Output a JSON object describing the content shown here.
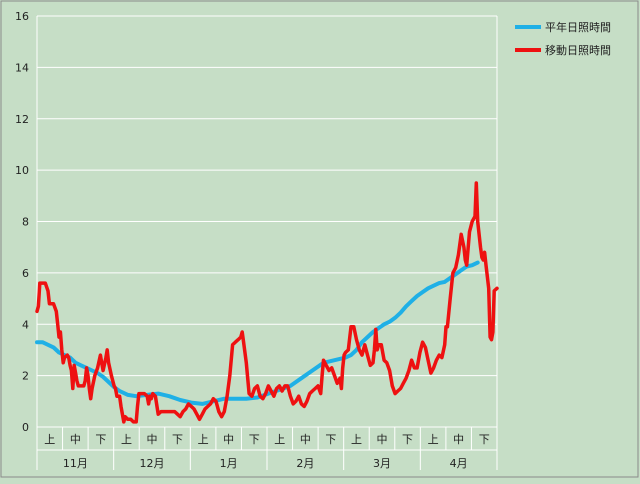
{
  "chart_data": {
    "type": "line",
    "ylim": [
      0,
      16
    ],
    "yticks": [
      0,
      2,
      4,
      6,
      8,
      10,
      12,
      14,
      16
    ],
    "months": [
      "11月",
      "12月",
      "1月",
      "2月",
      "3月",
      "4月"
    ],
    "periods": [
      "上",
      "中",
      "下"
    ],
    "legend_placement": "top-right",
    "grid": true,
    "series": [
      {
        "name": "平年日照時間",
        "color": "#1fb0e6",
        "points": [
          [
            0,
            3.3
          ],
          [
            2,
            3.3
          ],
          [
            4,
            3.2
          ],
          [
            6,
            3.1
          ],
          [
            8,
            2.9
          ],
          [
            10,
            2.8
          ],
          [
            12,
            2.7
          ],
          [
            14,
            2.5
          ],
          [
            16,
            2.4
          ],
          [
            18,
            2.3
          ],
          [
            20,
            2.2
          ],
          [
            22,
            2.1
          ],
          [
            24,
            1.95
          ],
          [
            26,
            1.75
          ],
          [
            28,
            1.55
          ],
          [
            30,
            1.4
          ],
          [
            33,
            1.25
          ],
          [
            36,
            1.2
          ],
          [
            40,
            1.25
          ],
          [
            44,
            1.3
          ],
          [
            48,
            1.2
          ],
          [
            52,
            1.05
          ],
          [
            56,
            0.95
          ],
          [
            60,
            0.9
          ],
          [
            64,
            1.0
          ],
          [
            68,
            1.1
          ],
          [
            72,
            1.1
          ],
          [
            76,
            1.1
          ],
          [
            80,
            1.15
          ],
          [
            84,
            1.3
          ],
          [
            88,
            1.45
          ],
          [
            92,
            1.6
          ],
          [
            96,
            1.9
          ],
          [
            100,
            2.2
          ],
          [
            104,
            2.5
          ],
          [
            108,
            2.6
          ],
          [
            112,
            2.7
          ],
          [
            114,
            2.8
          ],
          [
            116,
            3.0
          ],
          [
            118,
            3.3
          ],
          [
            120,
            3.5
          ],
          [
            122,
            3.7
          ],
          [
            124,
            3.85
          ],
          [
            126,
            4.0
          ],
          [
            128,
            4.1
          ],
          [
            130,
            4.25
          ],
          [
            132,
            4.45
          ],
          [
            134,
            4.7
          ],
          [
            136,
            4.9
          ],
          [
            138,
            5.1
          ],
          [
            140,
            5.25
          ],
          [
            142,
            5.4
          ],
          [
            144,
            5.5
          ],
          [
            146,
            5.6
          ],
          [
            148,
            5.65
          ],
          [
            150,
            5.8
          ],
          [
            152,
            5.95
          ],
          [
            154,
            6.1
          ],
          [
            156,
            6.25
          ],
          [
            158,
            6.3
          ],
          [
            160,
            6.4
          ]
        ]
      },
      {
        "name": "移動日照時間",
        "color": "#ee1111",
        "points": [
          [
            0,
            4.5
          ],
          [
            0.5,
            4.7
          ],
          [
            1,
            5.6
          ],
          [
            3,
            5.6
          ],
          [
            4,
            5.3
          ],
          [
            4.5,
            4.8
          ],
          [
            6,
            4.8
          ],
          [
            7,
            4.5
          ],
          [
            7.5,
            4.0
          ],
          [
            8,
            3.5
          ],
          [
            8.5,
            3.7
          ],
          [
            9,
            3.0
          ],
          [
            9.5,
            2.5
          ],
          [
            10,
            2.7
          ],
          [
            11,
            2.8
          ],
          [
            11.5,
            2.7
          ],
          [
            12,
            2.4
          ],
          [
            12.5,
            2.2
          ],
          [
            13,
            1.5
          ],
          [
            13.5,
            2.4
          ],
          [
            14,
            2.1
          ],
          [
            14.5,
            1.8
          ],
          [
            15,
            1.6
          ],
          [
            16,
            1.6
          ],
          [
            17,
            1.6
          ],
          [
            17.5,
            1.8
          ],
          [
            18,
            2.3
          ],
          [
            18.5,
            2.0
          ],
          [
            19,
            1.5
          ],
          [
            19.5,
            1.1
          ],
          [
            20,
            1.5
          ],
          [
            21,
            2.0
          ],
          [
            22,
            2.3
          ],
          [
            23,
            2.8
          ],
          [
            23.5,
            2.5
          ],
          [
            24,
            2.2
          ],
          [
            25,
            2.7
          ],
          [
            25.5,
            3.0
          ],
          [
            26,
            2.5
          ],
          [
            27,
            2.0
          ],
          [
            28,
            1.6
          ],
          [
            28.5,
            1.5
          ],
          [
            29,
            1.2
          ],
          [
            30,
            1.2
          ],
          [
            30.5,
            0.8
          ],
          [
            31,
            0.5
          ],
          [
            31.5,
            0.2
          ],
          [
            32,
            0.4
          ],
          [
            33,
            0.3
          ],
          [
            34,
            0.3
          ],
          [
            35,
            0.2
          ],
          [
            36,
            0.2
          ],
          [
            36.5,
            0.8
          ],
          [
            37,
            1.3
          ],
          [
            38,
            1.3
          ],
          [
            39,
            1.3
          ],
          [
            40,
            1.2
          ],
          [
            40.5,
            0.9
          ],
          [
            41,
            1.2
          ],
          [
            41.5,
            1.1
          ],
          [
            42,
            1.3
          ],
          [
            43,
            1.2
          ],
          [
            44,
            0.5
          ],
          [
            45,
            0.6
          ],
          [
            46,
            0.6
          ],
          [
            48,
            0.6
          ],
          [
            50,
            0.6
          ],
          [
            51,
            0.5
          ],
          [
            52,
            0.4
          ],
          [
            53,
            0.6
          ],
          [
            54,
            0.7
          ],
          [
            55,
            0.9
          ],
          [
            56,
            0.8
          ],
          [
            57,
            0.7
          ],
          [
            58,
            0.5
          ],
          [
            59,
            0.3
          ],
          [
            60,
            0.5
          ],
          [
            61,
            0.7
          ],
          [
            62,
            0.8
          ],
          [
            63,
            0.9
          ],
          [
            64,
            1.1
          ],
          [
            65,
            1.0
          ],
          [
            66,
            0.6
          ],
          [
            67,
            0.4
          ],
          [
            68,
            0.6
          ],
          [
            69,
            1.2
          ],
          [
            70,
            2.0
          ],
          [
            71,
            3.2
          ],
          [
            72,
            3.3
          ],
          [
            73,
            3.4
          ],
          [
            74,
            3.5
          ],
          [
            74.5,
            3.7
          ],
          [
            75,
            3.3
          ],
          [
            76,
            2.5
          ],
          [
            77,
            1.3
          ],
          [
            78,
            1.2
          ],
          [
            79,
            1.5
          ],
          [
            80,
            1.6
          ],
          [
            81,
            1.2
          ],
          [
            82,
            1.1
          ],
          [
            83,
            1.3
          ],
          [
            84,
            1.6
          ],
          [
            85,
            1.4
          ],
          [
            86,
            1.2
          ],
          [
            87,
            1.5
          ],
          [
            88,
            1.6
          ],
          [
            89,
            1.4
          ],
          [
            90,
            1.6
          ],
          [
            91,
            1.6
          ],
          [
            92,
            1.2
          ],
          [
            93,
            0.9
          ],
          [
            94,
            1.0
          ],
          [
            95,
            1.2
          ],
          [
            96,
            0.9
          ],
          [
            97,
            0.8
          ],
          [
            98,
            1.0
          ],
          [
            99,
            1.3
          ],
          [
            100,
            1.4
          ],
          [
            101,
            1.5
          ],
          [
            102,
            1.6
          ],
          [
            103,
            1.3
          ],
          [
            103.5,
            2.0
          ],
          [
            104,
            2.6
          ],
          [
            105,
            2.4
          ],
          [
            106,
            2.2
          ],
          [
            107,
            2.3
          ],
          [
            108,
            2.0
          ],
          [
            109,
            1.7
          ],
          [
            110,
            1.9
          ],
          [
            110.5,
            1.5
          ],
          [
            111,
            2.3
          ],
          [
            111.5,
            2.8
          ],
          [
            112,
            2.9
          ],
          [
            113,
            3.0
          ],
          [
            114,
            3.9
          ],
          [
            115,
            3.9
          ],
          [
            116,
            3.4
          ],
          [
            117,
            3.0
          ],
          [
            118,
            2.8
          ],
          [
            119,
            3.2
          ],
          [
            120,
            2.8
          ],
          [
            121,
            2.4
          ],
          [
            122,
            2.5
          ],
          [
            122.5,
            3.0
          ],
          [
            123,
            3.8
          ],
          [
            123.5,
            3.0
          ],
          [
            124,
            3.2
          ],
          [
            125,
            3.2
          ],
          [
            126,
            2.6
          ],
          [
            127,
            2.5
          ],
          [
            128,
            2.2
          ],
          [
            129,
            1.6
          ],
          [
            130,
            1.3
          ],
          [
            131,
            1.4
          ],
          [
            132,
            1.5
          ],
          [
            133,
            1.7
          ],
          [
            134,
            1.9
          ],
          [
            135,
            2.2
          ],
          [
            136,
            2.6
          ],
          [
            137,
            2.3
          ],
          [
            138,
            2.3
          ],
          [
            139,
            2.9
          ],
          [
            140,
            3.3
          ],
          [
            141,
            3.1
          ],
          [
            142,
            2.6
          ],
          [
            143,
            2.1
          ],
          [
            144,
            2.3
          ],
          [
            145,
            2.6
          ],
          [
            146,
            2.8
          ],
          [
            147,
            2.7
          ],
          [
            148,
            3.2
          ],
          [
            148.5,
            3.9
          ],
          [
            149,
            3.9
          ],
          [
            150,
            5.0
          ],
          [
            151,
            6.0
          ],
          [
            152,
            6.2
          ],
          [
            153,
            6.7
          ],
          [
            154,
            7.5
          ],
          [
            155,
            7.0
          ],
          [
            155.5,
            6.5
          ],
          [
            156,
            6.3
          ],
          [
            157,
            7.6
          ],
          [
            158,
            8.0
          ],
          [
            159,
            8.2
          ],
          [
            159.5,
            9.5
          ],
          [
            160,
            8.0
          ],
          [
            161,
            7.0
          ],
          [
            161.5,
            6.6
          ],
          [
            162,
            6.5
          ],
          [
            162.5,
            6.8
          ],
          [
            163,
            6.3
          ],
          [
            164,
            5.4
          ],
          [
            164.5,
            3.5
          ],
          [
            165,
            3.4
          ],
          [
            165.5,
            3.7
          ],
          [
            166,
            5.3
          ],
          [
            167,
            5.4
          ]
        ]
      }
    ]
  }
}
